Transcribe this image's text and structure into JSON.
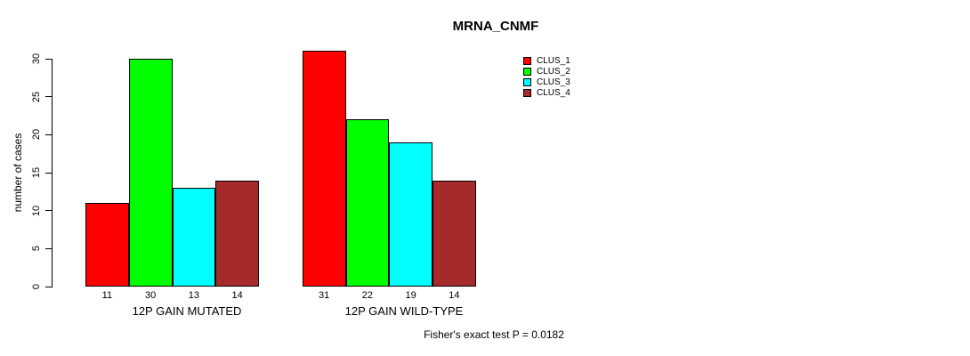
{
  "title": "MRNA_CNMF",
  "footer": "Fisher's exact test P = 0.0182",
  "y_axis": {
    "label": "number of cases",
    "ticks": [
      0,
      5,
      10,
      15,
      20,
      25,
      30
    ]
  },
  "legend": [
    {
      "label": "CLUS_1",
      "color": "#FF0000"
    },
    {
      "label": "CLUS_2",
      "color": "#00FF00"
    },
    {
      "label": "CLUS_3",
      "color": "#00FFFF"
    },
    {
      "label": "CLUS_4",
      "color": "#A52A2A"
    }
  ],
  "chart_data": {
    "type": "bar",
    "title": "MRNA_CNMF",
    "xlabel": "",
    "ylabel": "number of cases",
    "ylim": [
      0,
      31
    ],
    "yticks": [
      0,
      5,
      10,
      15,
      20,
      25,
      30
    ],
    "grid": false,
    "legend_position": "right",
    "categories": [
      "12P GAIN MUTATED",
      "12P GAIN WILD-TYPE"
    ],
    "series": [
      {
        "name": "CLUS_1",
        "color": "#FF0000",
        "values": [
          11,
          31
        ]
      },
      {
        "name": "CLUS_2",
        "color": "#00FF00",
        "values": [
          30,
          22
        ]
      },
      {
        "name": "CLUS_3",
        "color": "#00FFFF",
        "values": [
          13,
          19
        ]
      },
      {
        "name": "CLUS_4",
        "color": "#A52A2A",
        "values": [
          14,
          14
        ]
      }
    ],
    "bar_value_labels": [
      [
        11,
        30,
        13,
        14
      ],
      [
        31,
        22,
        19,
        14
      ]
    ],
    "annotation": "Fisher's exact test P = 0.0182"
  }
}
